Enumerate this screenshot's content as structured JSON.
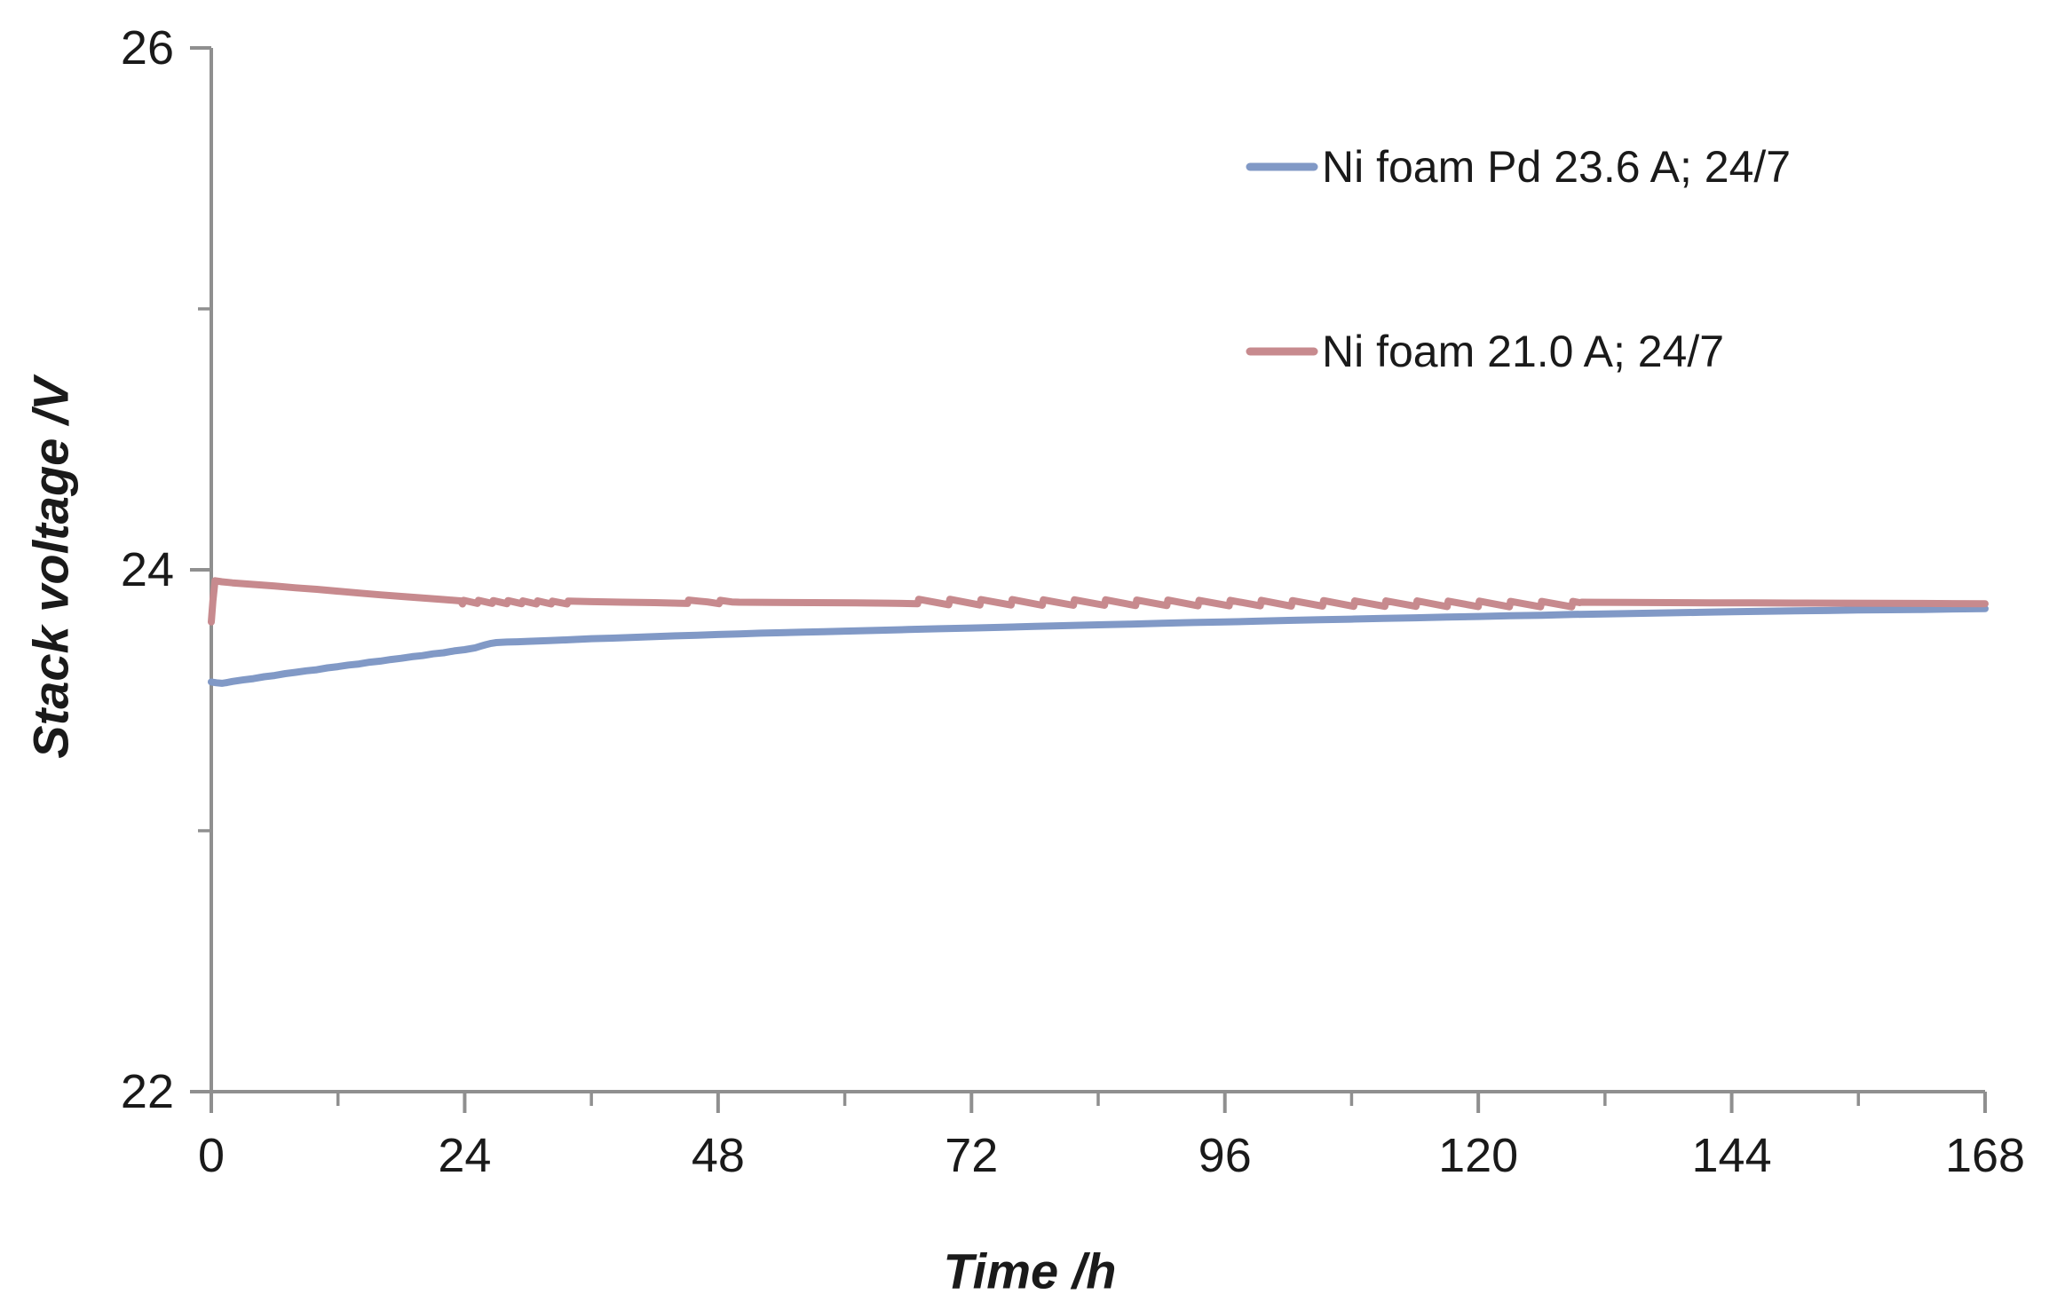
{
  "chart_data": {
    "type": "line",
    "title": "",
    "xlabel": "Time /h",
    "ylabel": "Stack voltage /V",
    "xlim": [
      0,
      168
    ],
    "ylim": [
      22,
      26
    ],
    "x_major_ticks": [
      0,
      24,
      48,
      72,
      96,
      120,
      144,
      168
    ],
    "x_tick_labels": [
      "0",
      "24",
      "48",
      "72",
      "96",
      "120",
      "144",
      "168"
    ],
    "x_minor_ticks": [
      12,
      36,
      60,
      84,
      108,
      132,
      156
    ],
    "y_major_ticks": [
      22,
      24,
      26
    ],
    "y_tick_labels": [
      "22",
      "24",
      "26"
    ],
    "y_minor_ticks": [
      23,
      25
    ],
    "grid": false,
    "legend_position": "upper right inside plot",
    "axis_color": "#8f8f8f",
    "text_color": "#1a1a1a",
    "background": "#ffffff",
    "series": [
      {
        "name": "Ni foam Pd 23.6 A; 24/7",
        "color": "#8199c6",
        "points": [
          [
            0,
            23.57
          ],
          [
            0.5,
            23.567
          ],
          [
            1,
            23.565
          ],
          [
            1.5,
            23.568
          ],
          [
            2,
            23.572
          ],
          [
            3,
            23.578
          ],
          [
            4,
            23.583
          ],
          [
            5,
            23.59
          ],
          [
            6,
            23.595
          ],
          [
            7,
            23.602
          ],
          [
            8,
            23.607
          ],
          [
            9,
            23.613
          ],
          [
            10,
            23.617
          ],
          [
            11,
            23.624
          ],
          [
            12,
            23.629
          ],
          [
            13,
            23.635
          ],
          [
            14,
            23.639
          ],
          [
            15,
            23.646
          ],
          [
            16,
            23.65
          ],
          [
            17,
            23.656
          ],
          [
            18,
            23.661
          ],
          [
            19,
            23.667
          ],
          [
            20,
            23.671
          ],
          [
            21,
            23.678
          ],
          [
            22,
            23.682
          ],
          [
            23,
            23.689
          ],
          [
            24,
            23.694
          ],
          [
            25,
            23.701
          ],
          [
            25.5,
            23.707
          ],
          [
            26,
            23.713
          ],
          [
            26.5,
            23.718
          ],
          [
            27,
            23.721
          ],
          [
            28,
            23.723
          ],
          [
            29,
            23.724
          ],
          [
            30,
            23.726
          ],
          [
            32,
            23.729
          ],
          [
            34,
            23.732
          ],
          [
            36,
            23.736
          ],
          [
            38,
            23.738
          ],
          [
            40,
            23.741
          ],
          [
            42,
            23.744
          ],
          [
            44,
            23.747
          ],
          [
            46,
            23.749
          ],
          [
            48,
            23.752
          ],
          [
            50,
            23.754
          ],
          [
            52,
            23.757
          ],
          [
            54,
            23.759
          ],
          [
            56,
            23.761
          ],
          [
            58,
            23.763
          ],
          [
            60,
            23.765
          ],
          [
            63,
            23.768
          ],
          [
            66,
            23.771
          ],
          [
            69,
            23.774
          ],
          [
            72,
            23.777
          ],
          [
            75,
            23.78
          ],
          [
            78,
            23.783
          ],
          [
            81,
            23.786
          ],
          [
            84,
            23.789
          ],
          [
            87,
            23.792
          ],
          [
            90,
            23.795
          ],
          [
            93,
            23.798
          ],
          [
            96,
            23.8
          ],
          [
            99,
            23.803
          ],
          [
            102,
            23.806
          ],
          [
            105,
            23.809
          ],
          [
            108,
            23.811
          ],
          [
            111,
            23.814
          ],
          [
            114,
            23.816
          ],
          [
            117,
            23.819
          ],
          [
            120,
            23.821
          ],
          [
            123,
            23.824
          ],
          [
            126,
            23.826
          ],
          [
            129,
            23.829
          ],
          [
            132,
            23.831
          ],
          [
            135,
            23.833
          ],
          [
            138,
            23.835
          ],
          [
            141,
            23.837
          ],
          [
            144,
            23.839
          ],
          [
            147,
            23.841
          ],
          [
            150,
            23.843
          ],
          [
            153,
            23.844
          ],
          [
            156,
            23.846
          ],
          [
            159,
            23.847
          ],
          [
            162,
            23.848
          ],
          [
            165,
            23.85
          ],
          [
            168,
            23.851
          ]
        ]
      },
      {
        "name": "Ni foam 21.0 A; 24/7",
        "color": "#c78a8e",
        "points": [
          [
            0,
            23.8
          ],
          [
            0.15,
            23.88
          ],
          [
            0.35,
            23.958
          ],
          [
            1,
            23.954
          ],
          [
            2,
            23.95
          ],
          [
            3,
            23.947
          ],
          [
            4,
            23.944
          ],
          [
            6,
            23.938
          ],
          [
            8,
            23.931
          ],
          [
            10,
            23.925
          ],
          [
            12,
            23.918
          ],
          [
            14,
            23.911
          ],
          [
            16,
            23.904
          ],
          [
            18,
            23.898
          ],
          [
            20,
            23.892
          ],
          [
            22,
            23.886
          ],
          [
            23.6,
            23.881
          ],
          [
            23.8,
            23.869
          ],
          [
            23.9,
            23.883
          ],
          [
            25.2,
            23.871
          ],
          [
            25.3,
            23.883
          ],
          [
            26.6,
            23.871
          ],
          [
            26.7,
            23.882
          ],
          [
            28.0,
            23.87
          ],
          [
            28.1,
            23.882
          ],
          [
            29.4,
            23.87
          ],
          [
            29.5,
            23.881
          ],
          [
            30.8,
            23.869
          ],
          [
            30.9,
            23.881
          ],
          [
            32.2,
            23.869
          ],
          [
            32.3,
            23.88
          ],
          [
            33.7,
            23.869
          ],
          [
            33.8,
            23.88
          ],
          [
            36,
            23.878
          ],
          [
            39,
            23.876
          ],
          [
            42,
            23.874
          ],
          [
            45.1,
            23.871
          ],
          [
            45.2,
            23.884
          ],
          [
            46.2,
            23.88
          ],
          [
            47.0,
            23.877
          ],
          [
            48.1,
            23.87
          ],
          [
            48.2,
            23.883
          ],
          [
            49.3,
            23.877
          ],
          [
            50,
            23.876
          ],
          [
            53,
            23.875
          ],
          [
            57,
            23.874
          ],
          [
            61,
            23.873
          ],
          [
            64,
            23.872
          ],
          [
            66.9,
            23.87
          ],
          [
            67.0,
            23.887
          ],
          [
            69.85,
            23.866
          ],
          [
            69.95,
            23.887
          ],
          [
            72.8,
            23.865
          ],
          [
            72.9,
            23.886
          ],
          [
            75.75,
            23.865
          ],
          [
            75.85,
            23.886
          ],
          [
            78.7,
            23.864
          ],
          [
            78.8,
            23.885
          ],
          [
            81.65,
            23.864
          ],
          [
            81.75,
            23.885
          ],
          [
            84.6,
            23.864
          ],
          [
            84.7,
            23.885
          ],
          [
            87.55,
            23.863
          ],
          [
            87.65,
            23.884
          ],
          [
            90.5,
            23.863
          ],
          [
            90.6,
            23.884
          ],
          [
            93.45,
            23.862
          ],
          [
            93.55,
            23.883
          ],
          [
            96.4,
            23.862
          ],
          [
            96.5,
            23.883
          ],
          [
            99.35,
            23.862
          ],
          [
            99.45,
            23.883
          ],
          [
            102.3,
            23.861
          ],
          [
            102.4,
            23.882
          ],
          [
            105.25,
            23.861
          ],
          [
            105.35,
            23.882
          ],
          [
            108.2,
            23.86
          ],
          [
            108.3,
            23.881
          ],
          [
            111.15,
            23.86
          ],
          [
            111.25,
            23.881
          ],
          [
            114.1,
            23.86
          ],
          [
            114.2,
            23.881
          ],
          [
            117.05,
            23.859
          ],
          [
            117.15,
            23.88
          ],
          [
            120.0,
            23.859
          ],
          [
            120.1,
            23.88
          ],
          [
            122.95,
            23.858
          ],
          [
            123.05,
            23.879
          ],
          [
            125.9,
            23.858
          ],
          [
            126.0,
            23.879
          ],
          [
            128.85,
            23.858
          ],
          [
            128.95,
            23.879
          ],
          [
            129.6,
            23.874
          ],
          [
            129.8,
            23.876
          ],
          [
            131,
            23.8755
          ],
          [
            134,
            23.875
          ],
          [
            138,
            23.874
          ],
          [
            142,
            23.8735
          ],
          [
            146,
            23.873
          ],
          [
            150,
            23.8725
          ],
          [
            154,
            23.872
          ],
          [
            158,
            23.8715
          ],
          [
            162,
            23.871
          ],
          [
            165,
            23.8705
          ],
          [
            168,
            23.87
          ]
        ]
      }
    ]
  },
  "legend": {
    "items": [
      {
        "label": "Ni foam Pd 23.6 A; 24/7",
        "color": "#8199c6"
      },
      {
        "label": "Ni foam 21.0 A; 24/7",
        "color": "#c78a8e"
      }
    ]
  }
}
